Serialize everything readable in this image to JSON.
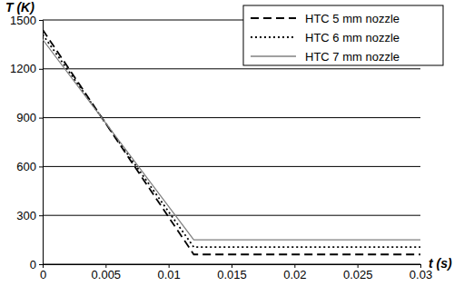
{
  "chart_data": {
    "type": "line",
    "x_label": "t (s)",
    "y_label": "T (K)",
    "x": [
      0,
      0.012,
      0.03
    ],
    "series": [
      {
        "name": "HTC 5 mm nozzle",
        "color": "#000000",
        "line_style": "dashed",
        "values": [
          1440,
          60,
          60
        ]
      },
      {
        "name": "HTC 6 mm nozzle",
        "color": "#000000",
        "line_style": "dotted",
        "values": [
          1410,
          105,
          105
        ]
      },
      {
        "name": "HTC 7 mm nozzle",
        "color": "#808080",
        "line_style": "solid",
        "values": [
          1380,
          150,
          150
        ]
      }
    ],
    "xlim": [
      0,
      0.03
    ],
    "xticks": [
      0,
      0.005,
      0.01,
      0.015,
      0.02,
      0.025,
      0.03
    ],
    "ylim": [
      0,
      1500
    ],
    "yticks": [
      0,
      300,
      600,
      900,
      1200,
      1500
    ],
    "grid": "y",
    "legend": "top-right"
  }
}
